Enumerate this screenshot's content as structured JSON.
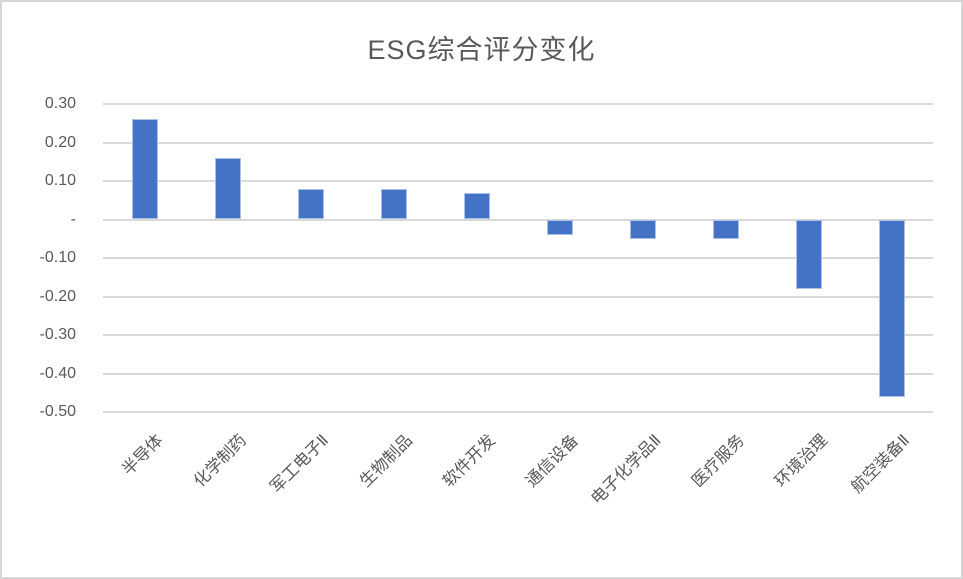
{
  "chart_data": {
    "type": "bar",
    "title": "ESG综合评分变化",
    "categories": [
      "半导体",
      "化学制药",
      "军工电子Ⅱ",
      "生物制品",
      "软件开发",
      "通信设备",
      "电子化学品Ⅱ",
      "医疗服务",
      "环境治理",
      "航空装备Ⅱ"
    ],
    "values": [
      0.26,
      0.16,
      0.08,
      0.08,
      0.07,
      -0.04,
      -0.05,
      -0.05,
      -0.18,
      -0.46
    ],
    "series_name": "ESG综合评分变化",
    "xlabel": "",
    "ylabel": "",
    "ylim": [
      -0.5,
      0.3
    ],
    "y_ticks": [
      {
        "value": 0.3,
        "label": "0.30"
      },
      {
        "value": 0.2,
        "label": "0.20"
      },
      {
        "value": 0.1,
        "label": "0.10"
      },
      {
        "value": 0.0,
        "label": "-"
      },
      {
        "value": -0.1,
        "label": "-0.10"
      },
      {
        "value": -0.2,
        "label": "-0.20"
      },
      {
        "value": -0.3,
        "label": "-0.30"
      },
      {
        "value": -0.4,
        "label": "-0.40"
      },
      {
        "value": -0.5,
        "label": "-0.50"
      }
    ],
    "grid": true,
    "legend": false,
    "x_label_rotation_deg": 45,
    "colors": {
      "bar": "#4472C4",
      "gridline": "#D9D9D9",
      "text": "#595959",
      "frame_border": "#D6D6D6",
      "background": "#FFFFFF"
    }
  }
}
